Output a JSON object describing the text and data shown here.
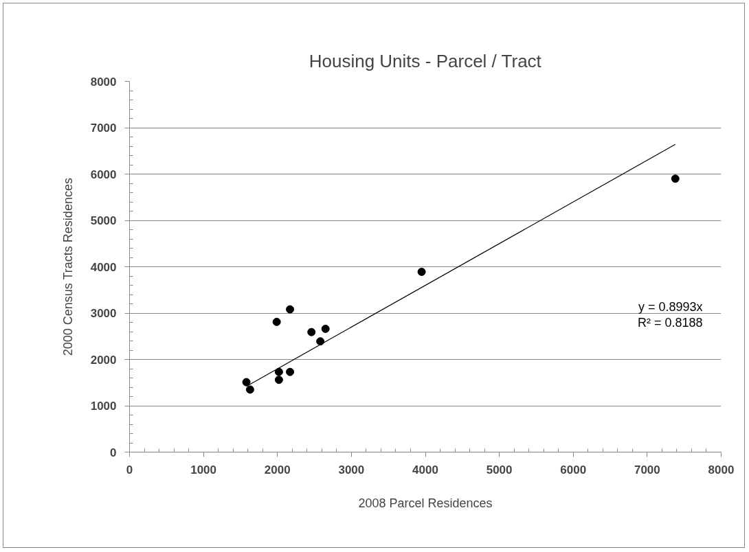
{
  "chart_data": {
    "type": "scatter",
    "title": "Housing Units - Parcel / Tract",
    "xlabel": "2008 Parcel Residences",
    "ylabel": "2000 Census Tracts Residences",
    "xlim": [
      0,
      8000
    ],
    "ylim": [
      0,
      8000
    ],
    "xticks": [
      0,
      1000,
      2000,
      3000,
      4000,
      5000,
      6000,
      7000,
      8000
    ],
    "yticks": [
      0,
      1000,
      2000,
      3000,
      4000,
      5000,
      6000,
      7000,
      8000
    ],
    "grid": "y",
    "marker": "circle",
    "series": [
      {
        "color": "#000000",
        "x": [
          1580,
          1630,
          1990,
          2170,
          2020,
          2020,
          2170,
          2460,
          2650,
          2580,
          3950,
          7380
        ],
        "values": [
          1510,
          1350,
          2810,
          3080,
          1730,
          1560,
          1730,
          2590,
          2660,
          2390,
          3890,
          5900
        ]
      },
      {
        "type": "line",
        "color": "#000000",
        "marker": "none",
        "line_style": "solid",
        "x": [
          1580,
          7380
        ],
        "values": [
          1420,
          6640
        ]
      }
    ],
    "annotations": [
      "y = 0.8993x",
      "R² = 0.8188"
    ]
  }
}
